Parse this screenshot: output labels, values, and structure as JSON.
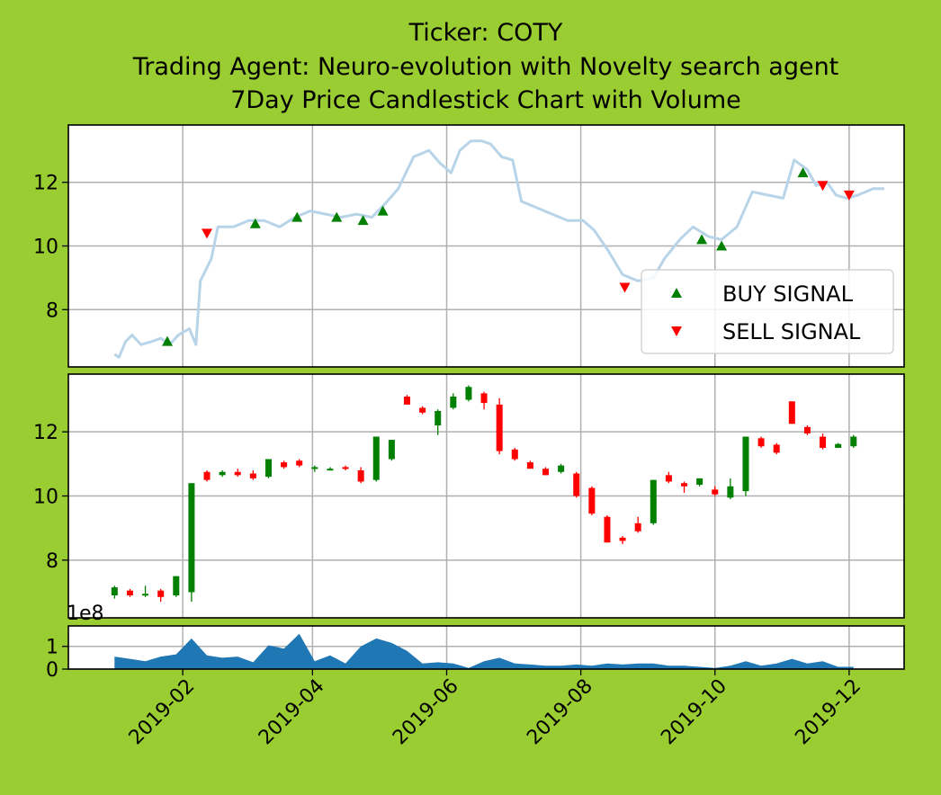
{
  "chart_data": {
    "type": "candlestick",
    "title_lines": [
      "Ticker: COTY",
      "Trading Agent: Neuro-evolution with Novelty search agent",
      "7Day Price Candlestick Chart with Volume"
    ],
    "x_ticks": [
      "2019-02",
      "2019-04",
      "2019-06",
      "2019-08",
      "2019-10",
      "2019-12"
    ],
    "x_range": [
      "2018-12-11",
      "2019-12-26"
    ],
    "grid": true,
    "colors": {
      "background": "#9acd32",
      "up": "#008000",
      "down": "#ff0000",
      "price_line": "#b8d4e8",
      "volume": "#1f77b4",
      "buy": "#008000",
      "sell": "#ff0000"
    },
    "price_panel": {
      "ylim": [
        6.2,
        13.8
      ],
      "y_ticks": [
        8,
        10,
        12
      ],
      "legend": {
        "placement": "lower-right",
        "entries": [
          "BUY SIGNAL",
          "SELL SIGNAL"
        ]
      },
      "line": [
        [
          "2019-01-01",
          6.6
        ],
        [
          "2019-01-03",
          6.5
        ],
        [
          "2019-01-06",
          7.0
        ],
        [
          "2019-01-09",
          7.2
        ],
        [
          "2019-01-13",
          6.9
        ],
        [
          "2019-01-18",
          7.0
        ],
        [
          "2019-01-22",
          7.1
        ],
        [
          "2019-01-26",
          6.9
        ],
        [
          "2019-01-30",
          7.2
        ],
        [
          "2019-02-04",
          7.4
        ],
        [
          "2019-02-07",
          6.9
        ],
        [
          "2019-02-09",
          8.9
        ],
        [
          "2019-02-14",
          9.6
        ],
        [
          "2019-02-17",
          10.6
        ],
        [
          "2019-02-24",
          10.6
        ],
        [
          "2019-03-03",
          10.8
        ],
        [
          "2019-03-10",
          10.8
        ],
        [
          "2019-03-17",
          10.6
        ],
        [
          "2019-03-24",
          10.9
        ],
        [
          "2019-03-31",
          11.1
        ],
        [
          "2019-04-07",
          11.0
        ],
        [
          "2019-04-14",
          10.9
        ],
        [
          "2019-04-21",
          11.0
        ],
        [
          "2019-04-28",
          10.9
        ],
        [
          "2019-05-05",
          11.4
        ],
        [
          "2019-05-10",
          11.8
        ],
        [
          "2019-05-17",
          12.8
        ],
        [
          "2019-05-24",
          13.0
        ],
        [
          "2019-05-29",
          12.6
        ],
        [
          "2019-06-03",
          12.3
        ],
        [
          "2019-06-07",
          13.0
        ],
        [
          "2019-06-12",
          13.3
        ],
        [
          "2019-06-17",
          13.3
        ],
        [
          "2019-06-21",
          13.2
        ],
        [
          "2019-06-26",
          12.8
        ],
        [
          "2019-07-01",
          12.7
        ],
        [
          "2019-07-05",
          11.4
        ],
        [
          "2019-07-12",
          11.2
        ],
        [
          "2019-07-19",
          11.0
        ],
        [
          "2019-07-26",
          10.8
        ],
        [
          "2019-08-02",
          10.8
        ],
        [
          "2019-08-07",
          10.5
        ],
        [
          "2019-08-13",
          9.9
        ],
        [
          "2019-08-20",
          9.1
        ],
        [
          "2019-08-27",
          8.9
        ],
        [
          "2019-09-03",
          9.0
        ],
        [
          "2019-09-08",
          9.6
        ],
        [
          "2019-09-15",
          10.2
        ],
        [
          "2019-09-21",
          10.6
        ],
        [
          "2019-09-28",
          10.3
        ],
        [
          "2019-10-04",
          10.2
        ],
        [
          "2019-10-11",
          10.6
        ],
        [
          "2019-10-18",
          11.7
        ],
        [
          "2019-10-25",
          11.6
        ],
        [
          "2019-11-01",
          11.5
        ],
        [
          "2019-11-06",
          12.7
        ],
        [
          "2019-11-12",
          12.4
        ],
        [
          "2019-11-16",
          11.9
        ],
        [
          "2019-11-21",
          12.0
        ],
        [
          "2019-11-25",
          11.6
        ],
        [
          "2019-11-30",
          11.5
        ],
        [
          "2019-12-05",
          11.6
        ],
        [
          "2019-12-12",
          11.8
        ],
        [
          "2019-12-17",
          11.8
        ]
      ],
      "buy_signals": [
        [
          "2019-01-25",
          7.0
        ],
        [
          "2019-03-06",
          10.7
        ],
        [
          "2019-03-25",
          10.9
        ],
        [
          "2019-04-12",
          10.9
        ],
        [
          "2019-04-24",
          10.8
        ],
        [
          "2019-05-03",
          11.1
        ],
        [
          "2019-09-25",
          10.2
        ],
        [
          "2019-10-04",
          10.0
        ],
        [
          "2019-11-10",
          12.3
        ]
      ],
      "sell_signals": [
        [
          "2019-02-12",
          10.4
        ],
        [
          "2019-08-21",
          8.7
        ],
        [
          "2019-11-19",
          11.9
        ],
        [
          "2019-12-01",
          11.6
        ]
      ]
    },
    "candle_panel": {
      "ylim": [
        6.2,
        13.8
      ],
      "y_ticks": [
        8,
        10,
        12
      ],
      "candles": [
        [
          "2019-01-01",
          6.9,
          7.2,
          6.8,
          7.15
        ],
        [
          "2019-01-08",
          7.05,
          7.1,
          6.85,
          6.9
        ],
        [
          "2019-01-15",
          6.9,
          7.2,
          6.85,
          6.95
        ],
        [
          "2019-01-22",
          7.05,
          7.1,
          6.7,
          6.85
        ],
        [
          "2019-01-29",
          6.9,
          7.5,
          6.85,
          7.5
        ],
        [
          "2019-02-05",
          7.0,
          10.4,
          6.7,
          10.4
        ],
        [
          "2019-02-12",
          10.75,
          10.8,
          10.45,
          10.5
        ],
        [
          "2019-02-19",
          10.65,
          10.8,
          10.6,
          10.75
        ],
        [
          "2019-02-26",
          10.75,
          10.85,
          10.6,
          10.65
        ],
        [
          "2019-03-05",
          10.7,
          10.8,
          10.5,
          10.55
        ],
        [
          "2019-03-12",
          10.6,
          11.15,
          10.55,
          11.15
        ],
        [
          "2019-03-19",
          11.05,
          11.1,
          10.85,
          10.9
        ],
        [
          "2019-03-26",
          11.1,
          11.15,
          10.9,
          10.95
        ],
        [
          "2019-04-02",
          10.85,
          10.95,
          10.75,
          10.9
        ],
        [
          "2019-04-09",
          10.85,
          10.9,
          10.8,
          10.85
        ],
        [
          "2019-04-16",
          10.9,
          10.95,
          10.8,
          10.85
        ],
        [
          "2019-04-23",
          10.8,
          10.9,
          10.4,
          10.45
        ],
        [
          "2019-04-30",
          10.5,
          11.85,
          10.45,
          11.85
        ],
        [
          "2019-05-07",
          11.15,
          11.75,
          11.1,
          11.75
        ],
        [
          "2019-05-14",
          13.1,
          13.15,
          12.85,
          12.85
        ],
        [
          "2019-05-21",
          12.75,
          12.8,
          12.55,
          12.6
        ],
        [
          "2019-05-28",
          12.2,
          12.7,
          11.9,
          12.65
        ],
        [
          "2019-06-04",
          12.75,
          13.2,
          12.7,
          13.1
        ],
        [
          "2019-06-11",
          13.0,
          13.45,
          12.95,
          13.4
        ],
        [
          "2019-06-18",
          13.2,
          13.25,
          12.7,
          12.9
        ],
        [
          "2019-06-25",
          12.85,
          13.05,
          11.3,
          11.4
        ],
        [
          "2019-07-02",
          11.45,
          11.5,
          11.1,
          11.15
        ],
        [
          "2019-07-09",
          11.05,
          11.1,
          10.85,
          10.85
        ],
        [
          "2019-07-16",
          10.85,
          10.9,
          10.65,
          10.65
        ],
        [
          "2019-07-23",
          10.75,
          11.0,
          10.7,
          10.95
        ],
        [
          "2019-07-30",
          10.7,
          10.75,
          9.95,
          10.0
        ],
        [
          "2019-08-06",
          10.25,
          10.3,
          9.4,
          9.45
        ],
        [
          "2019-08-13",
          9.35,
          9.4,
          8.55,
          8.55
        ],
        [
          "2019-08-20",
          8.7,
          8.75,
          8.5,
          8.6
        ],
        [
          "2019-08-27",
          9.15,
          9.35,
          8.85,
          8.9
        ],
        [
          "2019-09-03",
          9.15,
          10.5,
          9.1,
          10.5
        ],
        [
          "2019-09-10",
          10.65,
          10.75,
          10.4,
          10.45
        ],
        [
          "2019-09-17",
          10.4,
          10.45,
          10.1,
          10.3
        ],
        [
          "2019-09-24",
          10.35,
          10.55,
          10.3,
          10.55
        ],
        [
          "2019-10-01",
          10.2,
          10.3,
          10.0,
          10.05
        ],
        [
          "2019-10-08",
          9.95,
          10.55,
          9.9,
          10.3
        ],
        [
          "2019-10-15",
          10.15,
          11.85,
          10.0,
          11.85
        ],
        [
          "2019-10-22",
          11.8,
          11.85,
          11.5,
          11.55
        ],
        [
          "2019-10-29",
          11.6,
          11.65,
          11.3,
          11.35
        ],
        [
          "2019-11-05",
          12.95,
          12.95,
          12.25,
          12.25
        ],
        [
          "2019-11-12",
          12.15,
          12.2,
          11.9,
          11.95
        ],
        [
          "2019-11-19",
          11.85,
          11.95,
          11.45,
          11.5
        ],
        [
          "2019-11-26",
          11.5,
          11.65,
          11.5,
          11.62
        ],
        [
          "2019-12-03",
          11.55,
          11.9,
          11.5,
          11.85
        ]
      ]
    },
    "volume_panel": {
      "ylim": [
        0,
        1.9
      ],
      "y_ticks": [
        0,
        1
      ],
      "scale_label": "1e8",
      "values": [
        [
          "2019-01-01",
          0.55
        ],
        [
          "2019-01-08",
          0.45
        ],
        [
          "2019-01-15",
          0.35
        ],
        [
          "2019-01-22",
          0.55
        ],
        [
          "2019-01-29",
          0.65
        ],
        [
          "2019-02-05",
          1.35
        ],
        [
          "2019-02-12",
          0.6
        ],
        [
          "2019-02-19",
          0.5
        ],
        [
          "2019-02-26",
          0.55
        ],
        [
          "2019-03-05",
          0.3
        ],
        [
          "2019-03-12",
          1.05
        ],
        [
          "2019-03-19",
          0.9
        ],
        [
          "2019-03-26",
          1.55
        ],
        [
          "2019-04-02",
          0.35
        ],
        [
          "2019-04-09",
          0.6
        ],
        [
          "2019-04-16",
          0.25
        ],
        [
          "2019-04-23",
          1.0
        ],
        [
          "2019-04-30",
          1.35
        ],
        [
          "2019-05-07",
          1.15
        ],
        [
          "2019-05-14",
          0.8
        ],
        [
          "2019-05-21",
          0.25
        ],
        [
          "2019-05-28",
          0.3
        ],
        [
          "2019-06-04",
          0.25
        ],
        [
          "2019-06-11",
          0.05
        ],
        [
          "2019-06-18",
          0.35
        ],
        [
          "2019-06-25",
          0.5
        ],
        [
          "2019-07-02",
          0.25
        ],
        [
          "2019-07-09",
          0.2
        ],
        [
          "2019-07-16",
          0.15
        ],
        [
          "2019-07-23",
          0.15
        ],
        [
          "2019-07-30",
          0.2
        ],
        [
          "2019-08-06",
          0.15
        ],
        [
          "2019-08-13",
          0.25
        ],
        [
          "2019-08-20",
          0.2
        ],
        [
          "2019-08-27",
          0.25
        ],
        [
          "2019-09-03",
          0.25
        ],
        [
          "2019-09-10",
          0.15
        ],
        [
          "2019-09-17",
          0.15
        ],
        [
          "2019-09-24",
          0.1
        ],
        [
          "2019-10-01",
          0.05
        ],
        [
          "2019-10-08",
          0.15
        ],
        [
          "2019-10-15",
          0.35
        ],
        [
          "2019-10-22",
          0.15
        ],
        [
          "2019-10-29",
          0.25
        ],
        [
          "2019-11-05",
          0.45
        ],
        [
          "2019-11-12",
          0.25
        ],
        [
          "2019-11-19",
          0.35
        ],
        [
          "2019-11-26",
          0.1
        ],
        [
          "2019-12-03",
          0.1
        ]
      ]
    }
  }
}
